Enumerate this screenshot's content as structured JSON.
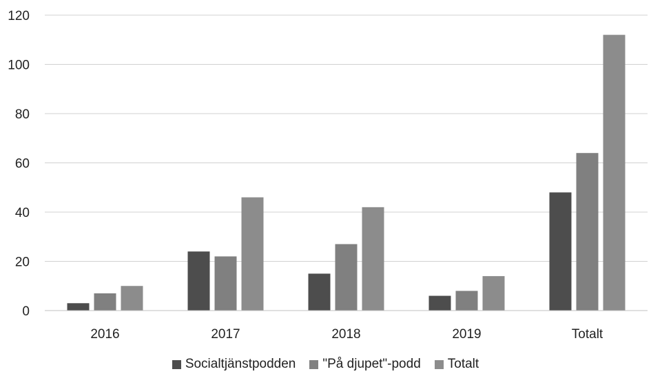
{
  "chart_data": {
    "type": "bar",
    "categories": [
      "2016",
      "2017",
      "2018",
      "2019",
      "Totalt"
    ],
    "series": [
      {
        "name": "Socialtjänstpodden",
        "values": [
          3,
          24,
          15,
          6,
          48
        ],
        "color": "#4d4d4d"
      },
      {
        "name": "\"På djupet\"-podd",
        "values": [
          7,
          22,
          27,
          8,
          64
        ],
        "color": "#808080"
      },
      {
        "name": "Totalt",
        "values": [
          10,
          46,
          42,
          14,
          112
        ],
        "color": "#8c8c8c"
      }
    ],
    "ylim": [
      0,
      120
    ],
    "yticks": [
      0,
      20,
      40,
      60,
      80,
      100,
      120
    ],
    "grid": true,
    "legend_position": "bottom"
  }
}
